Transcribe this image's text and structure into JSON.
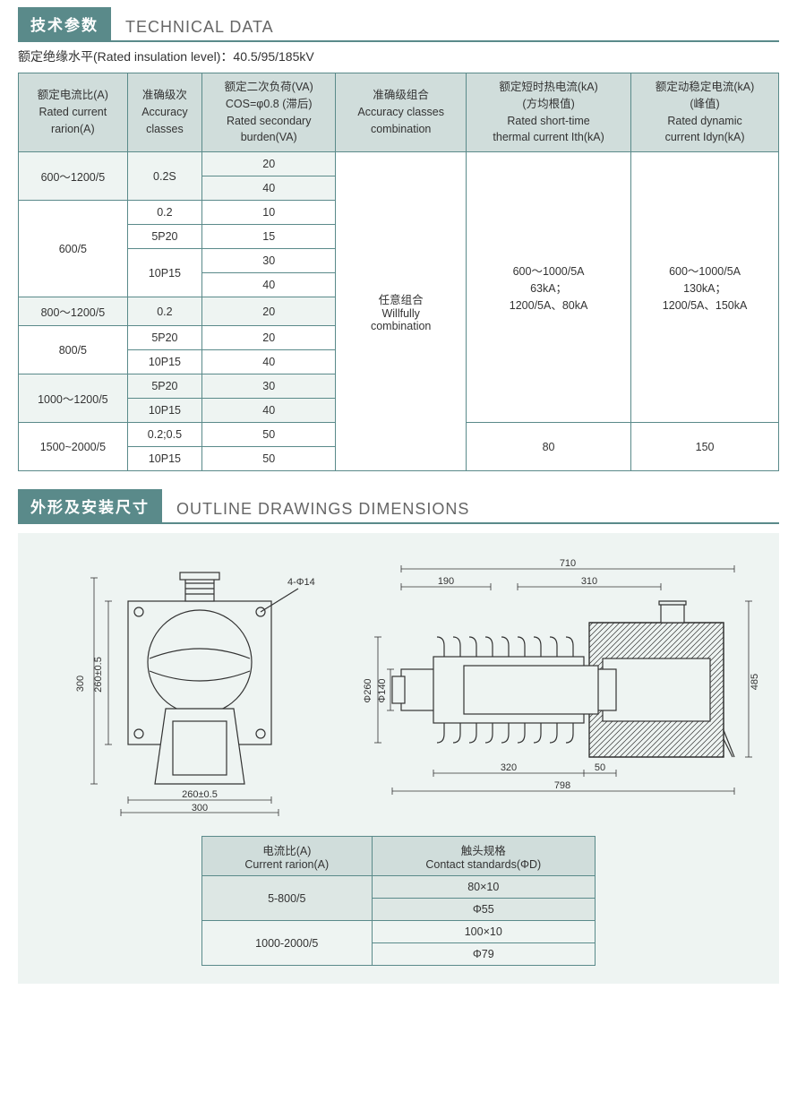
{
  "section1": {
    "title_cn": "技术参数",
    "title_en": "TECHNICAL DATA",
    "subtitle": "额定绝缘水平(Rated insulation level)：40.5/95/185kV"
  },
  "table1": {
    "headers": [
      "额定电流比(A)\nRated current\nrarion(A)",
      "准确级次\nAccuracy\nclasses",
      "额定二次负荷(VA)\nCOS=φ0.8 (滞后)\nRated secondary\nburden(VA)",
      "准确级组合\nAccuracy classes\ncombination",
      "额定短时热电流(kA)\n(方均根值)\nRated short-time\nthermal current Ith(kA)",
      "额定动稳定电流(kA)\n(峰值)\nRated dynamic\ncurrent Idyn(kA)"
    ],
    "col4_merged": "任意组合\nWillfully\ncombination",
    "col5_top": "600～1000/5A\n63kA；\n1200/5A、80kA",
    "col6_top": "600～1000/5A\n130kA；\n1200/5A、150kA",
    "col5_bot": "80",
    "col6_bot": "150",
    "rows": [
      {
        "c1": "600～1200/5",
        "c1span": 2,
        "c2": "0.2S",
        "c2span": 2,
        "c3": "20",
        "alt": true
      },
      {
        "c3": "40",
        "alt": true
      },
      {
        "c1": "600/5",
        "c1span": 4,
        "c2": "0.2",
        "c3": "10"
      },
      {
        "c2": "5P20",
        "c3": "15"
      },
      {
        "c2": "10P15",
        "c2span": 2,
        "c3": "30"
      },
      {
        "c3": "40"
      },
      {
        "c1": "800～1200/5",
        "c2": "0.2",
        "c3": "20",
        "alt": true
      },
      {
        "c1": "800/5",
        "c1span": 2,
        "c2": "5P20",
        "c3": "20"
      },
      {
        "c2": "10P15",
        "c3": "40"
      },
      {
        "c1": "1000～1200/5",
        "c1span": 2,
        "c2": "5P20",
        "c3": "30",
        "alt": true
      },
      {
        "c2": "10P15",
        "c3": "40",
        "alt": true
      },
      {
        "c1": "1500~2000/5",
        "c1span": 2,
        "c2": "0.2;0.5",
        "c3": "50"
      },
      {
        "c2": "10P15",
        "c3": "50"
      }
    ]
  },
  "section2": {
    "title_cn": "外形及安装尺寸",
    "title_en": "OUTLINE  DRAWINGS  DIMENSIONS"
  },
  "drawing": {
    "note": "4-Φ14",
    "dims_left": {
      "v1": "300",
      "v2": "260±0.5",
      "h1": "260±0.5",
      "h2": "300"
    },
    "dims_right": {
      "t1": "710",
      "t2": "190",
      "t3": "310",
      "v1": "Φ260",
      "v2": "Φ140",
      "b1": "320",
      "b2": "50",
      "b3": "798",
      "r1": "485"
    }
  },
  "table2": {
    "headers": [
      "电流比(A)\nCurrent rarion(A)",
      "触头规格\nContact standards(ΦD)"
    ],
    "rows": [
      {
        "c1": "5-800/5",
        "c1span": 2,
        "c2": "80×10",
        "alt": true
      },
      {
        "c2": "Φ55",
        "alt": true
      },
      {
        "c1": "1000-2000/5",
        "c1span": 2,
        "c2": "100×10"
      },
      {
        "c2": "Φ79"
      }
    ]
  },
  "colors": {
    "teal": "#5a8a8a",
    "headerbg": "#d0dddb",
    "altbg": "#eef4f2"
  }
}
